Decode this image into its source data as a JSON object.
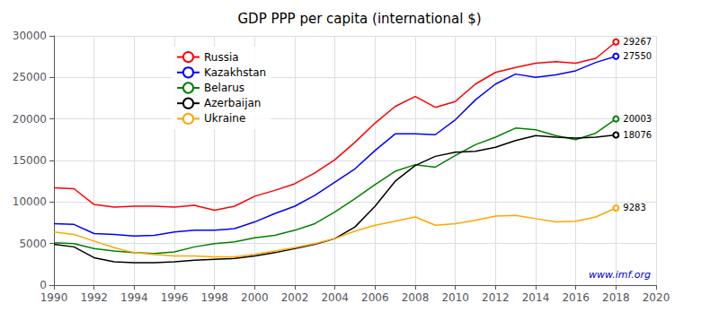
{
  "chart_data": {
    "type": "line",
    "title": "GDP PPP per capita (international $)",
    "xlim": [
      1990,
      2020
    ],
    "ylim": [
      0,
      30000
    ],
    "xticks": [
      1990,
      1992,
      1994,
      1996,
      1998,
      2000,
      2002,
      2004,
      2006,
      2008,
      2010,
      2012,
      2014,
      2016,
      2018,
      2020
    ],
    "yticks": [
      0,
      5000,
      10000,
      15000,
      20000,
      25000,
      30000
    ],
    "grid": true,
    "legend": "upper left",
    "x": [
      1990,
      1991,
      1992,
      1993,
      1994,
      1995,
      1996,
      1997,
      1998,
      1999,
      2000,
      2001,
      2002,
      2003,
      2004,
      2005,
      2006,
      2007,
      2008,
      2009,
      2010,
      2011,
      2012,
      2013,
      2014,
      2015,
      2016,
      2017,
      2018
    ],
    "series": [
      {
        "name": "Russia",
        "color": "#ff0000",
        "values": [
          11700,
          11600,
          9700,
          9400,
          9500,
          9500,
          9400,
          9600,
          9000,
          9500,
          10700,
          11400,
          12200,
          13500,
          15100,
          17200,
          19500,
          21500,
          22700,
          21400,
          22100,
          24200,
          25600,
          26200,
          26700,
          26900,
          26700,
          27300,
          29267
        ]
      },
      {
        "name": "Kazakhstan",
        "color": "#0000ff",
        "values": [
          7400,
          7300,
          6200,
          6100,
          5900,
          6000,
          6400,
          6600,
          6600,
          6800,
          7600,
          8600,
          9500,
          10800,
          12400,
          14000,
          16200,
          18200,
          18200,
          18100,
          19900,
          22300,
          24200,
          25400,
          25000,
          25300,
          25800,
          26800,
          27550
        ]
      },
      {
        "name": "Belarus",
        "color": "#008000",
        "values": [
          5100,
          5000,
          4400,
          4100,
          3900,
          3800,
          4000,
          4600,
          5000,
          5200,
          5700,
          6000,
          6600,
          7400,
          8800,
          10400,
          12100,
          13700,
          14500,
          14200,
          15600,
          16900,
          17800,
          18900,
          18700,
          18000,
          17500,
          18300,
          20003
        ]
      },
      {
        "name": "Azerbaijan",
        "color": "#000000",
        "values": [
          4900,
          4600,
          3300,
          2800,
          2700,
          2700,
          2800,
          3000,
          3100,
          3200,
          3500,
          3900,
          4400,
          4900,
          5600,
          7000,
          9500,
          12500,
          14400,
          15500,
          16000,
          16100,
          16600,
          17400,
          18000,
          17800,
          17700,
          17800,
          18076
        ]
      },
      {
        "name": "Ukraine",
        "color": "#ffa500",
        "values": [
          6400,
          6100,
          5300,
          4500,
          3900,
          3700,
          3500,
          3500,
          3400,
          3400,
          3700,
          4100,
          4500,
          5000,
          5600,
          6500,
          7200,
          7700,
          8200,
          7200,
          7400,
          7800,
          8300,
          8400,
          8000,
          7600,
          7700,
          8200,
          9283
        ]
      }
    ],
    "annotations": [
      {
        "text": "29267",
        "x": 2018,
        "y": 29267
      },
      {
        "text": "27550",
        "x": 2018,
        "y": 27550
      },
      {
        "text": "20003",
        "x": 2018,
        "y": 20003
      },
      {
        "text": "18076",
        "x": 2018,
        "y": 18076
      },
      {
        "text": "9283",
        "x": 2018,
        "y": 9283
      },
      {
        "text": "www.imf.org"
      }
    ]
  }
}
